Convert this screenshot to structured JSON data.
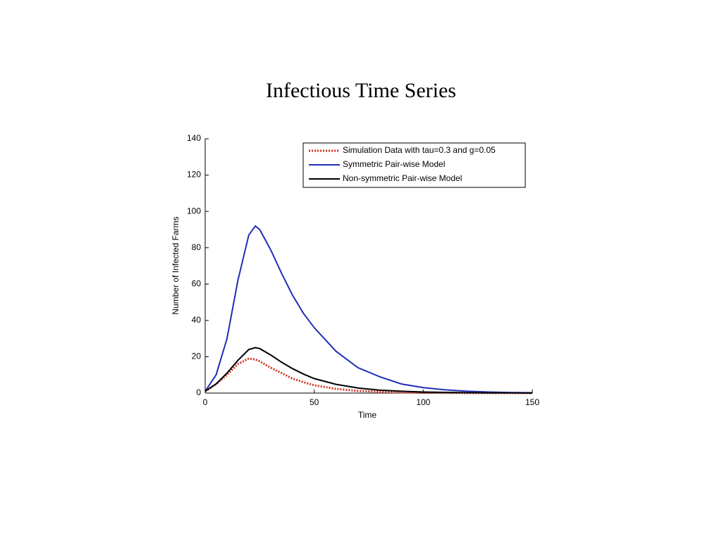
{
  "chart_data": {
    "type": "line",
    "title": "Infectious Time Series",
    "x_label": "Time",
    "y_label": "Number of Infected Farms",
    "x": [
      0,
      5,
      10,
      15,
      20,
      23,
      25,
      30,
      35,
      40,
      45,
      50,
      60,
      70,
      80,
      90,
      100,
      110,
      120,
      130,
      140,
      150
    ],
    "series": [
      {
        "name": "Simulation Data with tau=0.3 and g=0.05",
        "color": "#d03020",
        "line_style": "dotted",
        "values": [
          1,
          5,
          10,
          16,
          19,
          18.5,
          17.5,
          14,
          11,
          8,
          6,
          4.3,
          2.3,
          1.2,
          0.7,
          0.4,
          0.2,
          0.1,
          0,
          0,
          0,
          0
        ]
      },
      {
        "name": "Symmetric Pair-wise Model",
        "color": "#1f2fb5",
        "line_style": "solid",
        "values": [
          1,
          10,
          30,
          62,
          87,
          92,
          90,
          79,
          66,
          54,
          44,
          36,
          23,
          14,
          9,
          5,
          3,
          1.8,
          1,
          0.6,
          0.3,
          0.2
        ]
      },
      {
        "name": "Non-symmetric Pair-wise Model",
        "color": "#000000",
        "line_style": "solid",
        "values": [
          1,
          5,
          11,
          18,
          24,
          25,
          24.5,
          21,
          17,
          13.5,
          10.5,
          8,
          4.8,
          2.8,
          1.6,
          1,
          0.6,
          0.4,
          0.2,
          0.1,
          0.1,
          0
        ]
      }
    ],
    "xlim": [
      0,
      150
    ],
    "xticks": [
      0,
      50,
      100,
      150
    ],
    "ylim": [
      0,
      140
    ],
    "yticks": [
      0,
      20,
      40,
      60,
      80,
      100,
      120,
      140
    ],
    "grid": false,
    "legend": "top-right"
  }
}
